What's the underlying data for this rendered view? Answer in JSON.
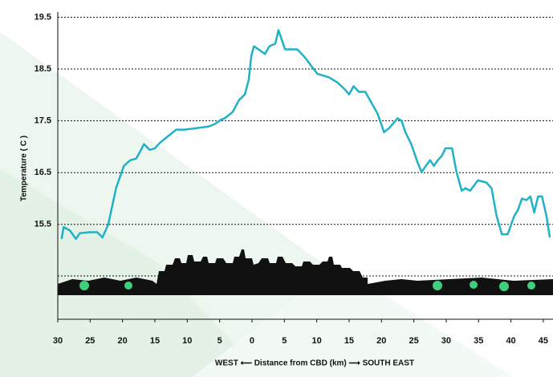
{
  "chart_data": {
    "type": "line",
    "x_label": "WEST ⟵ Distance from CBD (km) ⟶ SOUTH EAST",
    "y_label": "Temperature ( C )",
    "color": "#1fb2c6",
    "x": [
      -29.4,
      -29.1,
      -28.1,
      -27.2,
      -26.6,
      -25.1,
      -23.9,
      -23.1,
      -22.2,
      -21.0,
      -19.8,
      -18.8,
      -17.9,
      -17.3,
      -16.7,
      -15.8,
      -15.0,
      -14.2,
      -12.9,
      -11.7,
      -10.4,
      -8.6,
      -6.7,
      -5.7,
      -4.8,
      -4.2,
      -3.0,
      -2.0,
      -1.1,
      -0.5,
      -0.1,
      0.3,
      1.0,
      2.0,
      2.7,
      3.6,
      4.1,
      4.5,
      5.1,
      6.0,
      7.0,
      8.2,
      9.2,
      10.1,
      11.9,
      13.2,
      14.4,
      15.0,
      15.7,
      16.5,
      17.5,
      18.4,
      19.4,
      20.4,
      21.2,
      22.5,
      23.1,
      23.7,
      24.6,
      25.6,
      26.2,
      26.8,
      27.5,
      28.1,
      28.7,
      29.3,
      29.9,
      30.9,
      31.6,
      32.4,
      33.0,
      33.7,
      34.9,
      36.2,
      37.0,
      37.8,
      38.6,
      39.5,
      40.5,
      41.1,
      41.7,
      42.4,
      43.0,
      43.6,
      44.2,
      44.8,
      45.5,
      46.0
    ],
    "values": [
      15.22,
      15.45,
      15.38,
      15.22,
      15.33,
      15.35,
      15.35,
      15.25,
      15.5,
      16.2,
      16.63,
      16.74,
      16.77,
      16.9,
      17.05,
      16.94,
      16.97,
      17.08,
      17.21,
      17.33,
      17.33,
      17.36,
      17.39,
      17.44,
      17.52,
      17.55,
      17.67,
      17.9,
      18.01,
      18.29,
      18.76,
      18.94,
      18.88,
      18.79,
      18.94,
      18.99,
      19.25,
      19.1,
      18.88,
      18.88,
      18.88,
      18.72,
      18.55,
      18.41,
      18.34,
      18.24,
      18.1,
      18.01,
      18.17,
      18.06,
      18.06,
      17.86,
      17.64,
      17.28,
      17.36,
      17.55,
      17.5,
      17.28,
      17.05,
      16.69,
      16.51,
      16.62,
      16.74,
      16.63,
      16.74,
      16.82,
      16.97,
      16.97,
      16.51,
      16.15,
      16.2,
      16.15,
      16.35,
      16.31,
      16.2,
      15.66,
      15.31,
      15.31,
      15.66,
      15.78,
      16.0,
      15.97,
      16.04,
      15.73,
      16.04,
      16.04,
      15.66,
      15.25
    ],
    "xlim": [
      -30,
      46.5
    ],
    "xticks": [
      {
        "value": -30,
        "label": "30"
      },
      {
        "value": -25,
        "label": "25"
      },
      {
        "value": -20,
        "label": "20"
      },
      {
        "value": -15,
        "label": "15"
      },
      {
        "value": -10,
        "label": "10"
      },
      {
        "value": -5,
        "label": "5"
      },
      0,
      5,
      10,
      15,
      20,
      25,
      30,
      35,
      40,
      45
    ],
    "ylim": [
      13.67,
      19.6
    ],
    "yticks": [
      15.5,
      16.5,
      17.5,
      18.5,
      19.5
    ],
    "grid": true
  }
}
